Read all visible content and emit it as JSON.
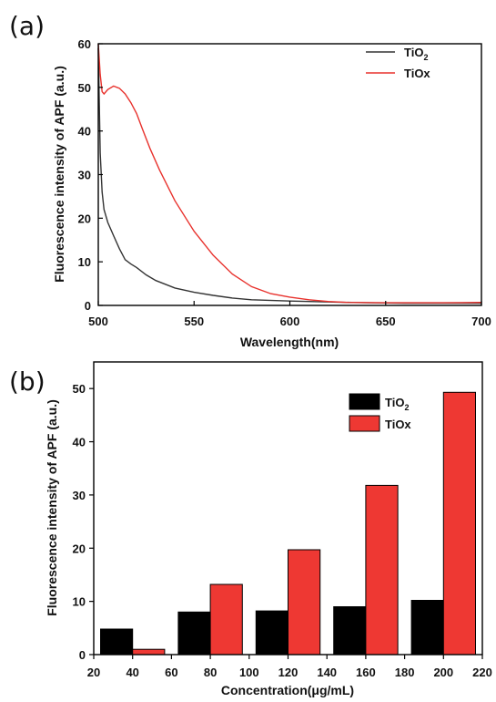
{
  "chart_data": [
    {
      "panel_label": "(a)",
      "type": "line",
      "xlabel": "Wavelength(nm)",
      "ylabel": "Fluorescence intensity of APF (a.u.)",
      "xlim": [
        500,
        700
      ],
      "ylim": [
        0,
        60
      ],
      "x_ticks": [
        500,
        550,
        600,
        650,
        700
      ],
      "y_ticks": [
        0,
        10,
        20,
        30,
        40,
        50,
        60
      ],
      "legend_position": "top-right",
      "grid": false,
      "series": [
        {
          "name": "TiO",
          "name_subscript": "2",
          "color": "#333333",
          "points": [
            [
              500,
              59
            ],
            [
              501,
              35
            ],
            [
              502,
              26
            ],
            [
              503,
              22
            ],
            [
              505,
              19
            ],
            [
              508,
              16
            ],
            [
              511,
              13
            ],
            [
              514,
              10.5
            ],
            [
              517,
              9.5
            ],
            [
              520,
              8.7
            ],
            [
              525,
              7
            ],
            [
              530,
              5.7
            ],
            [
              540,
              4
            ],
            [
              550,
              3
            ],
            [
              560,
              2.3
            ],
            [
              570,
              1.7
            ],
            [
              580,
              1.3
            ],
            [
              600,
              1
            ],
            [
              620,
              0.8
            ],
            [
              640,
              0.6
            ],
            [
              660,
              0.5
            ],
            [
              700,
              0.5
            ]
          ]
        },
        {
          "name": "TiOx",
          "name_subscript": "",
          "color": "#e8322d",
          "points": [
            [
              500,
              60
            ],
            [
              501,
              53
            ],
            [
              502,
              49
            ],
            [
              503,
              48.5
            ],
            [
              505,
              49.5
            ],
            [
              508,
              50.3
            ],
            [
              511,
              49.8
            ],
            [
              514,
              48.5
            ],
            [
              517,
              46.5
            ],
            [
              520,
              44
            ],
            [
              523,
              40.5
            ],
            [
              527,
              36
            ],
            [
              532,
              31
            ],
            [
              540,
              24
            ],
            [
              550,
              17
            ],
            [
              560,
              11.5
            ],
            [
              570,
              7.2
            ],
            [
              580,
              4.3
            ],
            [
              590,
              2.7
            ],
            [
              600,
              1.9
            ],
            [
              610,
              1.3
            ],
            [
              620,
              0.9
            ],
            [
              630,
              0.7
            ],
            [
              650,
              0.6
            ],
            [
              680,
              0.6
            ],
            [
              700,
              0.7
            ]
          ]
        }
      ]
    },
    {
      "panel_label": "(b)",
      "type": "bar",
      "xlabel": "Concentration(μg/mL)",
      "ylabel": "Fluorescence intensity of APF (a.u.)",
      "xlim": [
        20,
        220
      ],
      "ylim": [
        0,
        55
      ],
      "x_ticks": [
        20,
        40,
        60,
        80,
        100,
        120,
        140,
        160,
        180,
        200,
        220
      ],
      "y_ticks": [
        0,
        10,
        20,
        30,
        40,
        50
      ],
      "legend_position": "top-right",
      "grid": false,
      "categories": [
        40,
        80,
        120,
        160,
        200
      ],
      "series": [
        {
          "name": "TiO",
          "name_subscript": "2",
          "color": "#000000",
          "values": [
            4.8,
            8.0,
            8.2,
            9.0,
            10.2
          ]
        },
        {
          "name": "TiOx",
          "name_subscript": "",
          "color": "#ee3833",
          "values": [
            1.0,
            13.2,
            19.7,
            31.8,
            49.3
          ]
        }
      ]
    }
  ]
}
